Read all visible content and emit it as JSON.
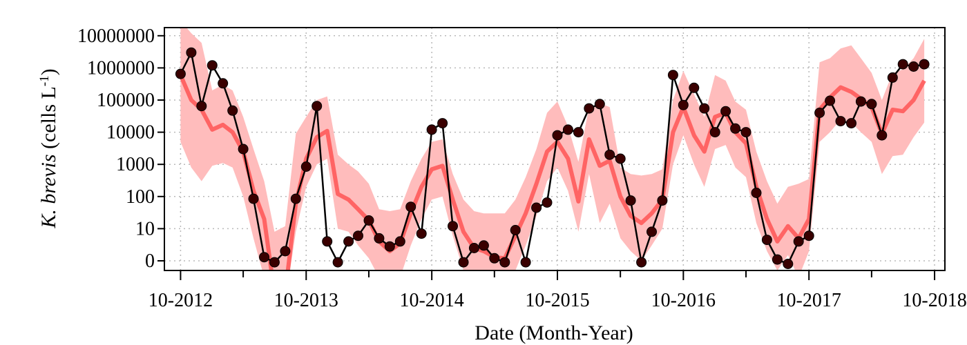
{
  "chart_data": {
    "type": "line",
    "xlabel": "Date (Month-Year)",
    "ylabel": {
      "italic": "K. brevis",
      "unit_prefix": " (cells L",
      "unit_sup": "-1",
      "unit_suffix": ")"
    },
    "x_tick_labels": [
      "10-2012",
      "10-2013",
      "10-2014",
      "10-2015",
      "10-2016",
      "10-2017",
      "10-2018"
    ],
    "y_scale": "log",
    "y_tick_labels": [
      "0",
      "10",
      "100",
      "1000",
      "10000",
      "100000",
      "1000000",
      "10000000"
    ],
    "x_range": [
      "2012-08-15",
      "2018-10-31"
    ],
    "grid": true,
    "colors": {
      "observed": "#000000",
      "observed_marker": "#3a0000",
      "model": "#ff5a5a",
      "model_band": "#ffbcbc"
    },
    "series": [
      {
        "role": "observed",
        "points": [
          [
            "2012-10-01",
            650000
          ],
          [
            "2012-11-01",
            3000000
          ],
          [
            "2012-12-01",
            65000
          ],
          [
            "2013-01-01",
            1200000
          ],
          [
            "2013-02-01",
            330000
          ],
          [
            "2013-03-01",
            47000
          ],
          [
            "2013-04-01",
            3000
          ],
          [
            "2013-05-01",
            85
          ],
          [
            "2013-06-01",
            1.3
          ],
          [
            "2013-07-01",
            0.9
          ],
          [
            "2013-08-01",
            2
          ],
          [
            "2013-09-01",
            85
          ],
          [
            "2013-10-01",
            850
          ],
          [
            "2013-11-01",
            65000
          ],
          [
            "2013-12-01",
            4
          ],
          [
            "2014-01-01",
            0.9
          ],
          [
            "2014-02-01",
            4
          ],
          [
            "2014-03-01",
            6
          ],
          [
            "2014-04-01",
            18
          ],
          [
            "2014-05-01",
            5
          ],
          [
            "2014-06-01",
            2.8
          ],
          [
            "2014-07-01",
            4
          ],
          [
            "2014-08-01",
            48
          ],
          [
            "2014-09-01",
            7
          ],
          [
            "2014-10-01",
            12000
          ],
          [
            "2014-11-01",
            19000
          ],
          [
            "2014-12-01",
            12
          ],
          [
            "2015-01-01",
            0.9
          ],
          [
            "2015-02-01",
            2.5
          ],
          [
            "2015-03-01",
            3
          ],
          [
            "2015-04-01",
            1.2
          ],
          [
            "2015-05-01",
            0.9
          ],
          [
            "2015-06-01",
            9
          ],
          [
            "2015-07-01",
            0.9
          ],
          [
            "2015-08-01",
            45
          ],
          [
            "2015-09-01",
            65
          ],
          [
            "2015-10-01",
            8000
          ],
          [
            "2015-11-01",
            12000
          ],
          [
            "2015-12-01",
            10000
          ],
          [
            "2016-01-01",
            55000
          ],
          [
            "2016-02-01",
            75000
          ],
          [
            "2016-03-01",
            2000
          ],
          [
            "2016-04-01",
            1500
          ],
          [
            "2016-05-01",
            75
          ],
          [
            "2016-06-01",
            0.9
          ],
          [
            "2016-07-01",
            8
          ],
          [
            "2016-08-01",
            75
          ],
          [
            "2016-09-01",
            600000
          ],
          [
            "2016-10-01",
            70000
          ],
          [
            "2016-11-01",
            240000
          ],
          [
            "2016-12-01",
            55000
          ],
          [
            "2017-01-01",
            10000
          ],
          [
            "2017-02-01",
            45000
          ],
          [
            "2017-03-01",
            13000
          ],
          [
            "2017-04-01",
            10000
          ],
          [
            "2017-05-01",
            130
          ],
          [
            "2017-06-01",
            4.5
          ],
          [
            "2017-07-01",
            1.1
          ],
          [
            "2017-08-01",
            0.8
          ],
          [
            "2017-09-01",
            4
          ],
          [
            "2017-10-01",
            6
          ],
          [
            "2017-11-01",
            40000
          ],
          [
            "2017-12-01",
            95000
          ],
          [
            "2018-01-01",
            22000
          ],
          [
            "2018-02-01",
            19000
          ],
          [
            "2018-03-01",
            90000
          ],
          [
            "2018-04-01",
            75000
          ],
          [
            "2018-05-01",
            8000
          ],
          [
            "2018-06-01",
            500000
          ],
          [
            "2018-07-01",
            1300000
          ],
          [
            "2018-08-01",
            1100000
          ],
          [
            "2018-09-01",
            1300000
          ]
        ]
      },
      {
        "role": "model",
        "points": [
          [
            "2012-10-01",
            600000
          ],
          [
            "2012-11-01",
            100000
          ],
          [
            "2012-12-01",
            50000
          ],
          [
            "2013-01-01",
            12000
          ],
          [
            "2013-02-01",
            17000
          ],
          [
            "2013-03-01",
            10000
          ],
          [
            "2013-04-01",
            2500
          ],
          [
            "2013-05-01",
            150
          ],
          [
            "2013-06-01",
            20
          ],
          [
            "2013-07-01",
            0.1
          ],
          [
            "2013-08-01",
            0.1
          ],
          [
            "2013-09-01",
            60
          ],
          [
            "2013-10-01",
            1500
          ],
          [
            "2013-11-01",
            7000
          ],
          [
            "2013-12-01",
            11000
          ],
          [
            "2014-01-01",
            120
          ],
          [
            "2014-02-01",
            80
          ],
          [
            "2014-03-01",
            40
          ],
          [
            "2014-04-01",
            18
          ],
          [
            "2014-05-01",
            4
          ],
          [
            "2014-06-01",
            2
          ],
          [
            "2014-07-01",
            3.5
          ],
          [
            "2014-08-01",
            30
          ],
          [
            "2014-09-01",
            200
          ],
          [
            "2014-10-01",
            700
          ],
          [
            "2014-11-01",
            900
          ],
          [
            "2014-12-01",
            80
          ],
          [
            "2015-01-01",
            8
          ],
          [
            "2015-02-01",
            2.5
          ],
          [
            "2015-03-01",
            2
          ],
          [
            "2015-04-01",
            1.3
          ],
          [
            "2015-05-01",
            1.2
          ],
          [
            "2015-06-01",
            6
          ],
          [
            "2015-07-01",
            30
          ],
          [
            "2015-08-01",
            250
          ],
          [
            "2015-09-01",
            2500
          ],
          [
            "2015-10-01",
            5000
          ],
          [
            "2015-11-01",
            1500
          ],
          [
            "2015-12-01",
            70
          ],
          [
            "2016-01-01",
            6000
          ],
          [
            "2016-02-01",
            900
          ],
          [
            "2016-03-01",
            1300
          ],
          [
            "2016-04-01",
            100
          ],
          [
            "2016-05-01",
            25
          ],
          [
            "2016-06-01",
            15
          ],
          [
            "2016-07-01",
            30
          ],
          [
            "2016-08-01",
            80
          ],
          [
            "2016-09-01",
            10000
          ],
          [
            "2016-10-01",
            60000
          ],
          [
            "2016-11-01",
            8000
          ],
          [
            "2016-12-01",
            2500
          ],
          [
            "2017-01-01",
            30000
          ],
          [
            "2017-02-01",
            40000
          ],
          [
            "2017-03-01",
            10000
          ],
          [
            "2017-04-01",
            4500
          ],
          [
            "2017-05-01",
            200
          ],
          [
            "2017-06-01",
            20
          ],
          [
            "2017-07-01",
            4
          ],
          [
            "2017-08-01",
            12
          ],
          [
            "2017-09-01",
            5
          ],
          [
            "2017-10-01",
            20
          ],
          [
            "2017-11-01",
            50000
          ],
          [
            "2017-12-01",
            120000
          ],
          [
            "2018-01-01",
            250000
          ],
          [
            "2018-02-01",
            180000
          ],
          [
            "2018-03-01",
            110000
          ],
          [
            "2018-04-01",
            60000
          ],
          [
            "2018-05-01",
            9000
          ],
          [
            "2018-06-01",
            50000
          ],
          [
            "2018-07-01",
            45000
          ],
          [
            "2018-08-01",
            100000
          ],
          [
            "2018-09-01",
            400000
          ]
        ]
      },
      {
        "role": "model_band",
        "points": [
          [
            "2012-10-01",
            5000,
            30000000
          ],
          [
            "2012-11-01",
            800,
            12000000
          ],
          [
            "2012-12-01",
            300,
            6000000
          ],
          [
            "2013-01-01",
            900,
            200000
          ],
          [
            "2013-02-01",
            1100,
            300000
          ],
          [
            "2013-03-01",
            800,
            200000
          ],
          [
            "2013-04-01",
            100,
            30000
          ],
          [
            "2013-05-01",
            5,
            3000
          ],
          [
            "2013-06-01",
            0.3,
            300
          ],
          [
            "2013-07-01",
            0.05,
            8
          ],
          [
            "2013-08-01",
            0.05,
            12
          ],
          [
            "2013-09-01",
            8,
            9000
          ],
          [
            "2013-10-01",
            200,
            30000
          ],
          [
            "2013-11-01",
            1000,
            100000
          ],
          [
            "2013-12-01",
            1500,
            130000
          ],
          [
            "2014-01-01",
            10,
            2000
          ],
          [
            "2014-02-01",
            8,
            1000
          ],
          [
            "2014-03-01",
            3,
            600
          ],
          [
            "2014-04-01",
            1.2,
            250
          ],
          [
            "2014-05-01",
            0.3,
            40
          ],
          [
            "2014-06-01",
            0.2,
            35
          ],
          [
            "2014-07-01",
            0.3,
            40
          ],
          [
            "2014-08-01",
            3,
            300
          ],
          [
            "2014-09-01",
            20,
            1500
          ],
          [
            "2014-10-01",
            80,
            5000
          ],
          [
            "2014-11-01",
            100,
            6000
          ],
          [
            "2014-12-01",
            6,
            500
          ],
          [
            "2015-01-01",
            0.5,
            80
          ],
          [
            "2015-02-01",
            0.3,
            35
          ],
          [
            "2015-03-01",
            0.2,
            30
          ],
          [
            "2015-04-01",
            0.1,
            30
          ],
          [
            "2015-05-01",
            0.1,
            30
          ],
          [
            "2015-06-01",
            0.5,
            80
          ],
          [
            "2015-07-01",
            3,
            400
          ],
          [
            "2015-08-01",
            25,
            3000
          ],
          [
            "2015-09-01",
            300,
            40000
          ],
          [
            "2015-10-01",
            800,
            90000
          ],
          [
            "2015-11-01",
            150,
            15000
          ],
          [
            "2015-12-01",
            8,
            1200
          ],
          [
            "2016-01-01",
            500,
            60000
          ],
          [
            "2016-02-01",
            15,
            80000
          ],
          [
            "2016-03-01",
            60,
            60000
          ],
          [
            "2016-04-01",
            5,
            800
          ],
          [
            "2016-05-01",
            2,
            500
          ],
          [
            "2016-06-01",
            1,
            450
          ],
          [
            "2016-07-01",
            3,
            500
          ],
          [
            "2016-08-01",
            10,
            700
          ],
          [
            "2016-09-01",
            1000,
            100000
          ],
          [
            "2016-10-01",
            8000,
            800000
          ],
          [
            "2016-11-01",
            1000,
            150000
          ],
          [
            "2016-12-01",
            200,
            30000
          ],
          [
            "2017-01-01",
            3000,
            600000
          ],
          [
            "2017-02-01",
            4000,
            400000
          ],
          [
            "2017-03-01",
            800,
            90000
          ],
          [
            "2017-04-01",
            400,
            50000
          ],
          [
            "2017-05-01",
            15,
            2500
          ],
          [
            "2017-06-01",
            2,
            300
          ],
          [
            "2017-07-01",
            0.5,
            60
          ],
          [
            "2017-08-01",
            1.5,
            200
          ],
          [
            "2017-09-01",
            0.3,
            250
          ],
          [
            "2017-10-01",
            2,
            350
          ],
          [
            "2017-11-01",
            5000,
            1500000
          ],
          [
            "2017-12-01",
            10000,
            2000000
          ],
          [
            "2018-01-01",
            25000,
            4000000
          ],
          [
            "2018-02-01",
            20000,
            5000000
          ],
          [
            "2018-03-01",
            10000,
            2000000
          ],
          [
            "2018-04-01",
            5000,
            700000
          ],
          [
            "2018-05-01",
            500,
            100000
          ],
          [
            "2018-06-01",
            1800,
            700000
          ],
          [
            "2018-07-01",
            2000,
            900000
          ],
          [
            "2018-08-01",
            7000,
            2000000
          ],
          [
            "2018-09-01",
            20000,
            8000000
          ]
        ]
      }
    ]
  }
}
